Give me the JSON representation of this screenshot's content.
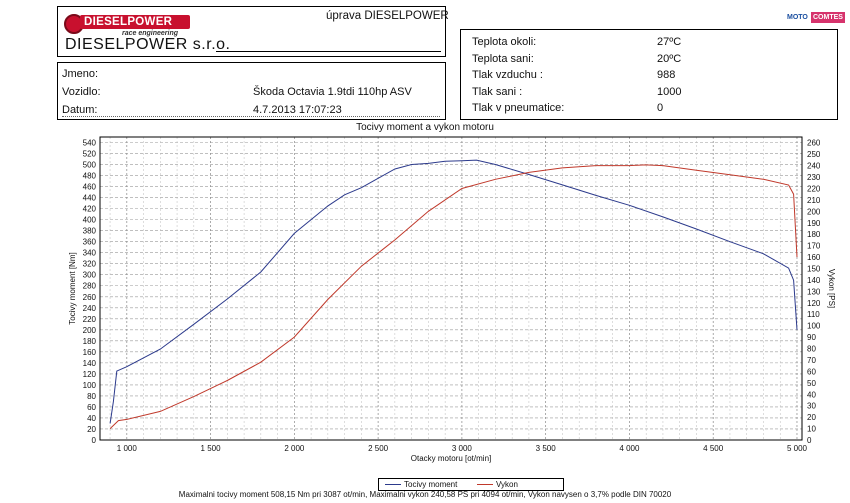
{
  "header": {
    "logo_text": "DIESELPOWER",
    "logo_subtext": "race engineering",
    "company": "DIESELPOWER s.r.o.",
    "service": "úprava DIESELPOWER",
    "badge_left": "MOTO",
    "badge_right": "COMTES",
    "badge_accent": "#d6336c"
  },
  "vehicle": {
    "name_label": "Jmeno:",
    "name_value": "",
    "vehicle_label": "Vozidlo:",
    "vehicle_value": "Škoda Octavia 1.9tdi 110hp ASV",
    "date_label": "Datum:",
    "date_value": "4.7.2013 17:07:23"
  },
  "conditions": [
    {
      "label": "Teplota okoli:",
      "value": "27ºC"
    },
    {
      "label": "Teplota sani:",
      "value": "20ºC"
    },
    {
      "label": "Tlak vzduchu :",
      "value": "988"
    },
    {
      "label": "Tlak sani :",
      "value": "1000"
    },
    {
      "label": "Tlak v pneumatice:",
      "value": "0"
    }
  ],
  "chart_data": {
    "type": "line",
    "title": "Tocivy moment a vykon motoru",
    "xlabel": "Otacky motoru [ot/min]",
    "ylabel_left": "Tocivy moment [Nm]",
    "ylabel_right": "Vykon [PS]",
    "xlim": [
      840,
      5030
    ],
    "ylim_left": [
      0,
      550
    ],
    "ylim_right": [
      0,
      265
    ],
    "x_ticks": [
      1000,
      1500,
      2000,
      2500,
      3000,
      3500,
      4000,
      4500,
      5000
    ],
    "x_tick_labels": [
      "1 000",
      "1 500",
      "2 000",
      "2 500",
      "3 000",
      "3 500",
      "4 000",
      "4 500",
      "5 000"
    ],
    "y_ticks_left": [
      0,
      20,
      40,
      60,
      80,
      100,
      120,
      140,
      160,
      180,
      200,
      220,
      240,
      260,
      280,
      300,
      320,
      340,
      360,
      380,
      400,
      420,
      440,
      460,
      480,
      500,
      520,
      540
    ],
    "y_ticks_right": [
      0,
      10,
      20,
      30,
      40,
      50,
      60,
      70,
      80,
      90,
      100,
      110,
      120,
      130,
      140,
      150,
      160,
      170,
      180,
      190,
      200,
      210,
      220,
      230,
      240,
      250,
      260
    ],
    "grid": true,
    "series": [
      {
        "name": "Tocivy moment",
        "axis": "left",
        "color": "#2c3a8c",
        "x": [
          900,
          920,
          940,
          1000,
          1200,
          1400,
          1600,
          1800,
          2000,
          2100,
          2200,
          2300,
          2400,
          2500,
          2600,
          2700,
          2800,
          2900,
          3000,
          3087,
          3200,
          3400,
          3600,
          3800,
          4000,
          4200,
          4400,
          4600,
          4800,
          4950,
          4980,
          5000
        ],
        "y": [
          30,
          70,
          125,
          133,
          165,
          210,
          256,
          305,
          375,
          400,
          425,
          445,
          458,
          475,
          492,
          500,
          502,
          506,
          507,
          508,
          500,
          482,
          463,
          444,
          426,
          405,
          383,
          360,
          338,
          312,
          290,
          200
        ]
      },
      {
        "name": "Vykon",
        "axis": "right",
        "color": "#c0392b",
        "x": [
          900,
          950,
          1000,
          1200,
          1400,
          1600,
          1800,
          2000,
          2200,
          2400,
          2600,
          2800,
          3000,
          3200,
          3400,
          3600,
          3800,
          4000,
          4094,
          4200,
          4400,
          4600,
          4800,
          4950,
          4980,
          5000
        ],
        "y": [
          10,
          17,
          18,
          25,
          38,
          52,
          68,
          90,
          123,
          152,
          175,
          200,
          220,
          228,
          234,
          238,
          240,
          240,
          240.58,
          240,
          236,
          232,
          228,
          223,
          215,
          160
        ]
      }
    ]
  },
  "legend": {
    "torque": "Tocivy moment",
    "power": "Vykon"
  },
  "footer": "Maximalni tocivy moment 508,15 Nm pri 3087 ot/min,  Maximalni vykon 240,58 PS pri 4094 ot/min,  Vykon navysen o 3,7% podle DIN 70020"
}
